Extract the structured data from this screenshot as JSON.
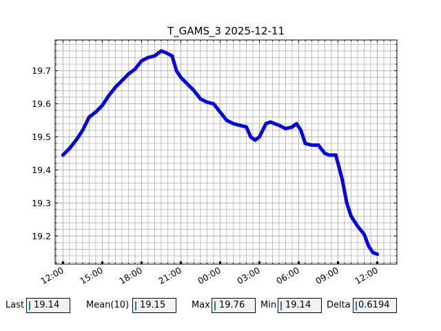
{
  "chart_data": {
    "type": "scatter",
    "title": "T_GAMS_3 2025-12-11",
    "xlabel": "",
    "ylabel": "",
    "x_ticks": [
      "12:00",
      "15:00",
      "18:00",
      "21:00",
      "00:00",
      "03:00",
      "06:00",
      "09:00",
      "12:00"
    ],
    "y_ticks": [
      "19.2",
      "19.3",
      "19.4",
      "19.5",
      "19.6",
      "19.7"
    ],
    "xlim": [
      "2025-12-11T11:24",
      "2025-12-12T13:30"
    ],
    "ylim": [
      19.115,
      19.793
    ],
    "grid": true,
    "marker_color": "#0000ee",
    "series": [
      {
        "x": [
          "2025-12-11T12:00",
          "2025-12-11T12:30",
          "2025-12-11T13:00",
          "2025-12-11T13:30",
          "2025-12-11T14:00",
          "2025-12-11T14:30",
          "2025-12-11T15:00",
          "2025-12-11T15:30",
          "2025-12-11T16:00",
          "2025-12-11T16:30",
          "2025-12-11T17:00",
          "2025-12-11T17:30",
          "2025-12-11T18:00",
          "2025-12-11T18:30",
          "2025-12-11T19:00",
          "2025-12-11T19:30",
          "2025-12-11T19:50",
          "2025-12-11T20:20",
          "2025-12-11T20:40",
          "2025-12-11T21:00",
          "2025-12-11T21:30",
          "2025-12-11T22:00",
          "2025-12-11T22:30",
          "2025-12-11T23:00",
          "2025-12-11T23:30",
          "2025-12-12T00:00",
          "2025-12-12T00:30",
          "2025-12-12T01:00",
          "2025-12-12T01:30",
          "2025-12-12T02:00",
          "2025-12-12T02:20",
          "2025-12-12T02:40",
          "2025-12-12T03:00",
          "2025-12-12T03:30",
          "2025-12-12T03:50",
          "2025-12-12T04:30",
          "2025-12-12T05:00",
          "2025-12-12T05:30",
          "2025-12-12T05:50",
          "2025-12-12T06:10",
          "2025-12-12T06:30",
          "2025-12-12T07:00",
          "2025-12-12T07:30",
          "2025-12-12T08:00",
          "2025-12-12T08:20",
          "2025-12-12T08:50",
          "2025-12-12T09:00",
          "2025-12-12T09:20",
          "2025-12-12T09:40",
          "2025-12-12T10:00",
          "2025-12-12T10:30",
          "2025-12-12T11:00",
          "2025-12-12T11:20",
          "2025-12-12T11:40",
          "2025-12-12T12:00"
        ],
        "y": [
          19.445,
          19.465,
          19.49,
          19.52,
          19.56,
          19.575,
          19.595,
          19.625,
          19.65,
          19.67,
          19.69,
          19.705,
          19.73,
          19.74,
          19.745,
          19.76,
          19.755,
          19.745,
          19.7,
          19.68,
          19.66,
          19.64,
          19.615,
          19.605,
          19.6,
          19.575,
          19.55,
          19.54,
          19.535,
          19.53,
          19.5,
          19.49,
          19.5,
          19.54,
          19.545,
          19.535,
          19.525,
          19.53,
          19.54,
          19.52,
          19.48,
          19.475,
          19.475,
          19.45,
          19.445,
          19.445,
          19.42,
          19.37,
          19.3,
          19.26,
          19.23,
          19.205,
          19.17,
          19.15,
          19.145
        ]
      }
    ]
  },
  "stats": {
    "last_label": "Last",
    "last_value": "19.14",
    "mean_label": "Mean(10)",
    "mean_value": "19.15",
    "max_label": "Max",
    "max_value": "19.76",
    "min_label": "Min",
    "min_value": "19.14",
    "delta_label": "Delta",
    "delta_value": "0.6194"
  }
}
